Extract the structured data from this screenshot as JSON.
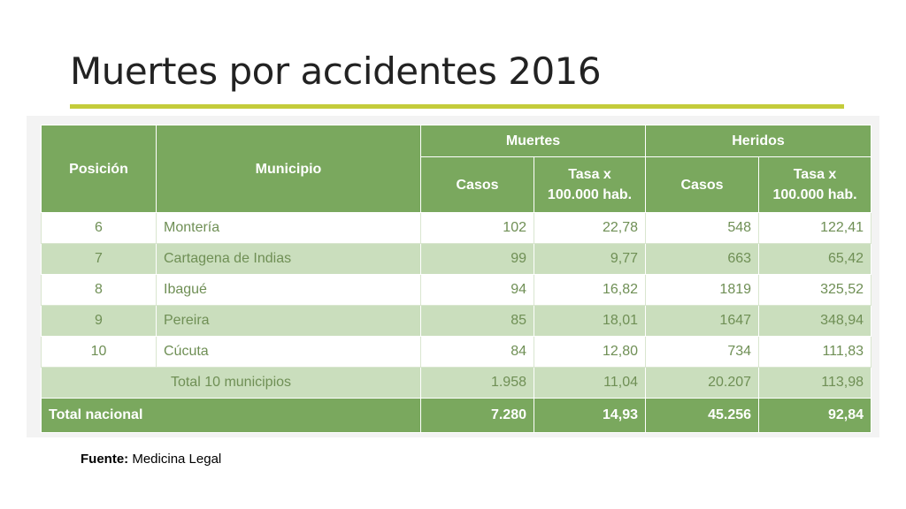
{
  "title": "Muertes por accidentes 2016",
  "table": {
    "headers": {
      "position": "Posición",
      "municipality": "Municipio",
      "deaths": "Muertes",
      "injured": "Heridos",
      "cases": "Casos",
      "rate_line1": "Tasa x",
      "rate_line2": "100.000 hab."
    },
    "rows": [
      {
        "pos": "6",
        "name": "Montería",
        "d_cases": "102",
        "d_rate": "22,78",
        "i_cases": "548",
        "i_rate": "122,41"
      },
      {
        "pos": "7",
        "name": "Cartagena de Indias",
        "d_cases": "99",
        "d_rate": "9,77",
        "i_cases": "663",
        "i_rate": "65,42"
      },
      {
        "pos": "8",
        "name": "Ibagué",
        "d_cases": "94",
        "d_rate": "16,82",
        "i_cases": "1819",
        "i_rate": "325,52"
      },
      {
        "pos": "9",
        "name": "Pereira",
        "d_cases": "85",
        "d_rate": "18,01",
        "i_cases": "1647",
        "i_rate": "348,94"
      },
      {
        "pos": "10",
        "name": "Cúcuta",
        "d_cases": "84",
        "d_rate": "12,80",
        "i_cases": "734",
        "i_rate": "111,83"
      }
    ],
    "subtotal": {
      "label": "Total 10 municipios",
      "d_cases": "1.958",
      "d_rate": "11,04",
      "i_cases": "20.207",
      "i_rate": "113,98"
    },
    "total": {
      "label": "Total nacional",
      "d_cases": "7.280",
      "d_rate": "14,93",
      "i_cases": "45.256",
      "i_rate": "92,84"
    }
  },
  "source": {
    "label": "Fuente:",
    "text": "Medicina Legal"
  },
  "colors": {
    "header_green": "#7aa85e",
    "stripe_green": "#cadebd",
    "body_text": "#6f8f55",
    "accent_rule": "#c4cc3a"
  }
}
